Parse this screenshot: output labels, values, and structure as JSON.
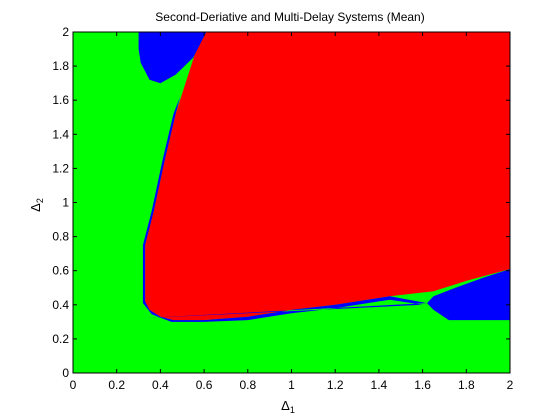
{
  "chart_data": {
    "type": "heatmap",
    "title": "Second-Deriative and Multi-Delay Systems (Mean)",
    "xlabel": {
      "symbol": "Δ",
      "subscript": "1"
    },
    "ylabel": {
      "symbol": "Δ",
      "subscript": "2"
    },
    "xlim": [
      0,
      2
    ],
    "ylim": [
      0,
      2
    ],
    "xticks": [
      "0",
      "0.2",
      "0.4",
      "0.6",
      "0.8",
      "1",
      "1.2",
      "1.4",
      "1.6",
      "1.8",
      "2"
    ],
    "yticks": [
      "0",
      "0.2",
      "0.4",
      "0.6",
      "0.8",
      "1",
      "1.2",
      "1.4",
      "1.6",
      "1.8",
      "2"
    ],
    "grid": false,
    "colors": {
      "green": "#00ff00",
      "red": "#ff0000",
      "blue": "#0000ff"
    },
    "background_region": "green",
    "regions": [
      {
        "color": "red",
        "boundary": [
          [
            0.33,
            0.42
          ],
          [
            0.33,
            0.75
          ],
          [
            0.37,
            0.95
          ],
          [
            0.42,
            1.25
          ],
          [
            0.47,
            1.52
          ],
          [
            0.51,
            1.68
          ],
          [
            0.56,
            1.88
          ],
          [
            0.61,
            2.0
          ],
          [
            2.0,
            2.0
          ],
          [
            2.0,
            0.61
          ],
          [
            1.8,
            0.54
          ],
          [
            1.65,
            0.48
          ],
          [
            1.45,
            0.45
          ],
          [
            1.2,
            0.4
          ],
          [
            1.0,
            0.37
          ],
          [
            0.8,
            0.33
          ],
          [
            0.6,
            0.31
          ],
          [
            0.46,
            0.31
          ],
          [
            0.4,
            0.33
          ],
          [
            0.35,
            0.37
          ]
        ]
      },
      {
        "color": "blue",
        "boundary": [
          [
            0.3,
            2.0
          ],
          [
            0.61,
            2.0
          ],
          [
            0.55,
            1.85
          ],
          [
            0.47,
            1.75
          ],
          [
            0.4,
            1.7
          ],
          [
            0.35,
            1.72
          ],
          [
            0.31,
            1.82
          ],
          [
            0.3,
            1.9
          ]
        ]
      },
      {
        "color": "blue",
        "boundary": [
          [
            1.65,
            0.45
          ],
          [
            1.75,
            0.5
          ],
          [
            1.88,
            0.56
          ],
          [
            2.0,
            0.61
          ],
          [
            2.0,
            0.31
          ],
          [
            1.85,
            0.31
          ],
          [
            1.72,
            0.31
          ],
          [
            1.65,
            0.37
          ],
          [
            1.62,
            0.41
          ]
        ]
      },
      {
        "color": "blue",
        "boundary": [
          [
            0.3,
            0.32
          ],
          [
            1.62,
            0.41
          ],
          [
            1.45,
            0.45
          ],
          [
            1.2,
            0.4
          ],
          [
            1.0,
            0.37
          ],
          [
            0.8,
            0.33
          ],
          [
            0.6,
            0.31
          ],
          [
            0.46,
            0.31
          ],
          [
            0.4,
            0.33
          ],
          [
            0.35,
            0.37
          ],
          [
            0.33,
            0.42
          ],
          [
            0.33,
            0.75
          ],
          [
            0.37,
            0.95
          ],
          [
            0.42,
            1.25
          ],
          [
            0.47,
            1.52
          ],
          [
            0.49,
            1.62
          ],
          [
            0.46,
            1.52
          ],
          [
            0.41,
            1.25
          ],
          [
            0.36,
            0.95
          ],
          [
            0.32,
            0.75
          ],
          [
            0.32,
            0.41
          ],
          [
            0.36,
            0.345
          ],
          [
            0.45,
            0.3
          ],
          [
            0.6,
            0.3
          ],
          [
            0.8,
            0.31
          ],
          [
            1.0,
            0.35
          ],
          [
            1.2,
            0.38
          ],
          [
            1.45,
            0.43
          ],
          [
            1.6,
            0.4
          ]
        ]
      }
    ]
  }
}
